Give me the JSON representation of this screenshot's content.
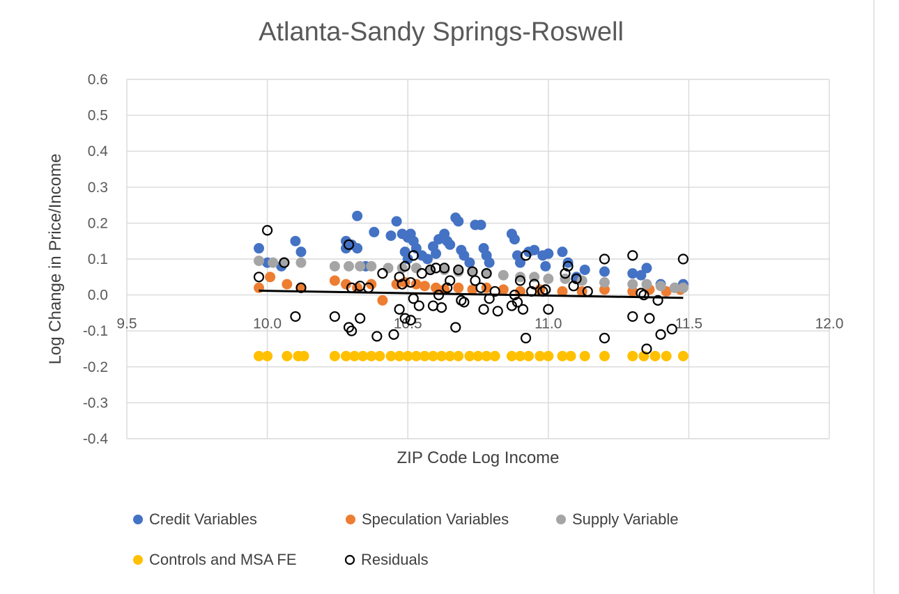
{
  "chart_data": {
    "type": "scatter",
    "title": "Atlanta-Sandy Springs-Roswell",
    "xlabel": "ZIP Code Log Income",
    "ylabel": "Log Change in Price/Income",
    "xlim": [
      9.5,
      12.0
    ],
    "ylim": [
      -0.4,
      0.6
    ],
    "x_ticks": [
      "9.5",
      "10.0",
      "10.5",
      "11.0",
      "11.5",
      "12.0"
    ],
    "y_ticks": [
      "0.6",
      "0.5",
      "0.4",
      "0.3",
      "0.2",
      "0.1",
      "0.0",
      "-0.1",
      "-0.2",
      "-0.3",
      "-0.4"
    ],
    "grid": true,
    "legend_position": "bottom",
    "series": [
      {
        "name": "Credit Variables",
        "color": "#4472c4",
        "marker": "filled-circle",
        "points": [
          [
            9.97,
            0.13
          ],
          [
            10.0,
            0.09
          ],
          [
            10.05,
            0.08
          ],
          [
            10.1,
            0.15
          ],
          [
            10.12,
            0.12
          ],
          [
            10.28,
            0.15
          ],
          [
            10.28,
            0.13
          ],
          [
            10.3,
            0.14
          ],
          [
            10.32,
            0.22
          ],
          [
            10.32,
            0.13
          ],
          [
            10.35,
            0.08
          ],
          [
            10.38,
            0.175
          ],
          [
            10.44,
            0.165
          ],
          [
            10.46,
            0.205
          ],
          [
            10.48,
            0.17
          ],
          [
            10.5,
            0.16
          ],
          [
            10.51,
            0.17
          ],
          [
            10.52,
            0.15
          ],
          [
            10.49,
            0.12
          ],
          [
            10.5,
            0.1
          ],
          [
            10.53,
            0.13
          ],
          [
            10.55,
            0.11
          ],
          [
            10.57,
            0.1
          ],
          [
            10.59,
            0.135
          ],
          [
            10.6,
            0.115
          ],
          [
            10.61,
            0.155
          ],
          [
            10.63,
            0.17
          ],
          [
            10.64,
            0.15
          ],
          [
            10.65,
            0.14
          ],
          [
            10.67,
            0.215
          ],
          [
            10.68,
            0.205
          ],
          [
            10.69,
            0.125
          ],
          [
            10.7,
            0.11
          ],
          [
            10.72,
            0.09
          ],
          [
            10.74,
            0.195
          ],
          [
            10.76,
            0.195
          ],
          [
            10.77,
            0.13
          ],
          [
            10.78,
            0.11
          ],
          [
            10.79,
            0.09
          ],
          [
            10.87,
            0.17
          ],
          [
            10.88,
            0.155
          ],
          [
            10.89,
            0.11
          ],
          [
            10.9,
            0.09
          ],
          [
            10.93,
            0.12
          ],
          [
            10.95,
            0.125
          ],
          [
            10.98,
            0.11
          ],
          [
            10.99,
            0.08
          ],
          [
            11.0,
            0.115
          ],
          [
            11.05,
            0.12
          ],
          [
            11.07,
            0.09
          ],
          [
            11.1,
            0.05
          ],
          [
            11.13,
            0.07
          ],
          [
            11.2,
            0.065
          ],
          [
            11.3,
            0.06
          ],
          [
            11.35,
            0.075
          ],
          [
            11.33,
            0.055
          ],
          [
            11.4,
            0.03
          ],
          [
            11.45,
            0.02
          ],
          [
            11.48,
            0.03
          ]
        ]
      },
      {
        "name": "Speculation Variables",
        "color": "#ed7d31",
        "marker": "filled-circle",
        "points": [
          [
            9.97,
            0.02
          ],
          [
            10.01,
            0.05
          ],
          [
            10.07,
            0.03
          ],
          [
            10.12,
            0.02
          ],
          [
            10.24,
            0.04
          ],
          [
            10.28,
            0.03
          ],
          [
            10.32,
            0.02
          ],
          [
            10.37,
            0.03
          ],
          [
            10.41,
            -0.015
          ],
          [
            10.46,
            0.03
          ],
          [
            10.49,
            0.035
          ],
          [
            10.53,
            0.03
          ],
          [
            10.56,
            0.025
          ],
          [
            10.6,
            0.02
          ],
          [
            10.63,
            0.015
          ],
          [
            10.68,
            0.02
          ],
          [
            10.73,
            0.015
          ],
          [
            10.78,
            0.02
          ],
          [
            10.84,
            0.015
          ],
          [
            10.9,
            0.01
          ],
          [
            10.97,
            0.015
          ],
          [
            11.05,
            0.01
          ],
          [
            11.12,
            0.01
          ],
          [
            11.2,
            0.015
          ],
          [
            11.3,
            0.01
          ],
          [
            11.36,
            0.015
          ],
          [
            11.42,
            0.01
          ],
          [
            11.47,
            0.015
          ]
        ]
      },
      {
        "name": "Supply Variable",
        "color": "#a5a5a5",
        "marker": "filled-circle",
        "points": [
          [
            9.97,
            0.095
          ],
          [
            10.02,
            0.09
          ],
          [
            10.06,
            0.09
          ],
          [
            10.12,
            0.09
          ],
          [
            10.24,
            0.08
          ],
          [
            10.29,
            0.08
          ],
          [
            10.33,
            0.08
          ],
          [
            10.37,
            0.08
          ],
          [
            10.43,
            0.075
          ],
          [
            10.48,
            0.075
          ],
          [
            10.53,
            0.075
          ],
          [
            10.58,
            0.07
          ],
          [
            10.63,
            0.07
          ],
          [
            10.68,
            0.065
          ],
          [
            10.73,
            0.065
          ],
          [
            10.78,
            0.06
          ],
          [
            10.84,
            0.055
          ],
          [
            10.9,
            0.05
          ],
          [
            10.95,
            0.05
          ],
          [
            11.0,
            0.045
          ],
          [
            11.06,
            0.045
          ],
          [
            11.12,
            0.04
          ],
          [
            11.2,
            0.035
          ],
          [
            11.3,
            0.03
          ],
          [
            11.35,
            0.03
          ],
          [
            11.4,
            0.025
          ],
          [
            11.45,
            0.02
          ],
          [
            11.48,
            0.02
          ]
        ]
      },
      {
        "name": "Controls and MSA FE",
        "color": "#ffc000",
        "marker": "filled-circle",
        "points": [
          [
            9.97,
            -0.17
          ],
          [
            10.0,
            -0.17
          ],
          [
            10.07,
            -0.17
          ],
          [
            10.11,
            -0.17
          ],
          [
            10.13,
            -0.17
          ],
          [
            10.24,
            -0.17
          ],
          [
            10.28,
            -0.17
          ],
          [
            10.31,
            -0.17
          ],
          [
            10.34,
            -0.17
          ],
          [
            10.37,
            -0.17
          ],
          [
            10.4,
            -0.17
          ],
          [
            10.44,
            -0.17
          ],
          [
            10.47,
            -0.17
          ],
          [
            10.5,
            -0.17
          ],
          [
            10.53,
            -0.17
          ],
          [
            10.56,
            -0.17
          ],
          [
            10.59,
            -0.17
          ],
          [
            10.62,
            -0.17
          ],
          [
            10.65,
            -0.17
          ],
          [
            10.68,
            -0.17
          ],
          [
            10.72,
            -0.17
          ],
          [
            10.75,
            -0.17
          ],
          [
            10.78,
            -0.17
          ],
          [
            10.81,
            -0.17
          ],
          [
            10.87,
            -0.17
          ],
          [
            10.9,
            -0.17
          ],
          [
            10.93,
            -0.17
          ],
          [
            10.97,
            -0.17
          ],
          [
            11.0,
            -0.17
          ],
          [
            11.05,
            -0.17
          ],
          [
            11.08,
            -0.17
          ],
          [
            11.13,
            -0.17
          ],
          [
            11.2,
            -0.17
          ],
          [
            11.3,
            -0.17
          ],
          [
            11.34,
            -0.17
          ],
          [
            11.38,
            -0.17
          ],
          [
            11.42,
            -0.17
          ],
          [
            11.48,
            -0.17
          ]
        ]
      },
      {
        "name": "Residuals",
        "color": "#000000",
        "marker": "hollow-circle",
        "points": [
          [
            9.97,
            0.05
          ],
          [
            10.0,
            0.18
          ],
          [
            10.06,
            0.09
          ],
          [
            10.1,
            -0.06
          ],
          [
            10.12,
            0.02
          ],
          [
            10.24,
            -0.06
          ],
          [
            10.29,
            0.14
          ],
          [
            10.29,
            -0.09
          ],
          [
            10.3,
            -0.1
          ],
          [
            10.3,
            0.02
          ],
          [
            10.33,
            -0.065
          ],
          [
            10.33,
            0.025
          ],
          [
            10.36,
            0.02
          ],
          [
            10.39,
            -0.115
          ],
          [
            10.41,
            0.06
          ],
          [
            10.45,
            -0.11
          ],
          [
            10.47,
            -0.04
          ],
          [
            10.47,
            0.05
          ],
          [
            10.48,
            0.03
          ],
          [
            10.49,
            0.08
          ],
          [
            10.49,
            -0.065
          ],
          [
            10.51,
            -0.07
          ],
          [
            10.51,
            0.035
          ],
          [
            10.52,
            0.11
          ],
          [
            10.52,
            -0.01
          ],
          [
            10.54,
            -0.03
          ],
          [
            10.55,
            0.06
          ],
          [
            10.58,
            0.07
          ],
          [
            10.59,
            -0.03
          ],
          [
            10.6,
            0.075
          ],
          [
            10.61,
            0.0
          ],
          [
            10.62,
            -0.035
          ],
          [
            10.63,
            0.075
          ],
          [
            10.64,
            0.02
          ],
          [
            10.65,
            0.04
          ],
          [
            10.67,
            -0.09
          ],
          [
            10.68,
            0.07
          ],
          [
            10.69,
            -0.015
          ],
          [
            10.7,
            -0.02
          ],
          [
            10.73,
            0.065
          ],
          [
            10.74,
            0.04
          ],
          [
            10.76,
            0.02
          ],
          [
            10.77,
            -0.04
          ],
          [
            10.78,
            0.06
          ],
          [
            10.79,
            -0.01
          ],
          [
            10.81,
            0.01
          ],
          [
            10.82,
            -0.045
          ],
          [
            10.87,
            -0.03
          ],
          [
            10.88,
            0.0
          ],
          [
            10.89,
            -0.02
          ],
          [
            10.9,
            0.04
          ],
          [
            10.91,
            -0.04
          ],
          [
            10.92,
            -0.12
          ],
          [
            10.92,
            0.11
          ],
          [
            10.94,
            0.01
          ],
          [
            10.95,
            0.03
          ],
          [
            10.98,
            0.01
          ],
          [
            10.99,
            0.015
          ],
          [
            11.0,
            -0.04
          ],
          [
            11.06,
            0.06
          ],
          [
            11.07,
            0.08
          ],
          [
            11.09,
            0.025
          ],
          [
            11.1,
            0.045
          ],
          [
            11.14,
            0.01
          ],
          [
            11.2,
            0.1
          ],
          [
            11.2,
            -0.12
          ],
          [
            11.3,
            0.11
          ],
          [
            11.3,
            -0.06
          ],
          [
            11.33,
            0.005
          ],
          [
            11.35,
            -0.15
          ],
          [
            11.36,
            -0.065
          ],
          [
            11.39,
            -0.015
          ],
          [
            11.4,
            -0.11
          ],
          [
            11.44,
            -0.095
          ],
          [
            11.48,
            0.1
          ],
          [
            11.34,
            0.0
          ]
        ]
      }
    ],
    "trendline": {
      "color": "#000000",
      "points": [
        [
          9.97,
          0.012
        ],
        [
          11.48,
          -0.008
        ]
      ]
    }
  }
}
